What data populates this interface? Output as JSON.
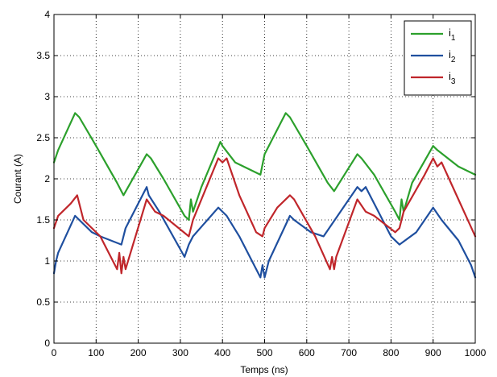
{
  "chart_data": {
    "type": "line",
    "title": "",
    "xlabel": "Temps (ns)",
    "ylabel": "Courant (A)",
    "xlim": [
      0,
      1000
    ],
    "ylim": [
      0,
      4
    ],
    "xticks": [
      "0",
      "100",
      "200",
      "300",
      "400",
      "500",
      "600",
      "700",
      "800",
      "900",
      "1000"
    ],
    "yticks": [
      "0",
      "0.5",
      "1",
      "1.5",
      "2",
      "2.5",
      "3",
      "3.5",
      "4"
    ],
    "grid": true,
    "legend_position": "top-right",
    "series": [
      {
        "name": "i1",
        "legend_base": "i",
        "legend_sub": "1",
        "color": "#2ca02c",
        "x": [
          0,
          10,
          50,
          60,
          100,
          150,
          165,
          220,
          230,
          260,
          310,
          320,
          325,
          330,
          350,
          395,
          400,
          430,
          490,
          500,
          550,
          560,
          600,
          650,
          665,
          720,
          730,
          760,
          810,
          820,
          825,
          830,
          850,
          900,
          910,
          960,
          1000
        ],
        "y": [
          2.2,
          2.35,
          2.8,
          2.75,
          2.4,
          1.95,
          1.8,
          2.3,
          2.25,
          2.0,
          1.55,
          1.5,
          1.75,
          1.6,
          1.9,
          2.45,
          2.4,
          2.2,
          2.05,
          2.3,
          2.8,
          2.75,
          2.4,
          1.95,
          1.85,
          2.3,
          2.25,
          2.05,
          1.6,
          1.5,
          1.75,
          1.6,
          1.95,
          2.4,
          2.35,
          2.15,
          2.05
        ]
      },
      {
        "name": "i2",
        "legend_base": "i",
        "legend_sub": "2",
        "color": "#1f4f9f",
        "x": [
          0,
          5,
          10,
          50,
          60,
          90,
          110,
          160,
          170,
          220,
          225,
          250,
          310,
          320,
          330,
          390,
          410,
          440,
          490,
          495,
          500,
          510,
          560,
          570,
          610,
          640,
          720,
          730,
          740,
          760,
          800,
          820,
          860,
          900,
          920,
          960,
          990,
          1000
        ],
        "y": [
          0.85,
          1.0,
          1.1,
          1.55,
          1.5,
          1.35,
          1.3,
          1.2,
          1.4,
          1.9,
          1.8,
          1.6,
          1.05,
          1.2,
          1.3,
          1.65,
          1.55,
          1.3,
          0.8,
          0.95,
          0.8,
          1.0,
          1.55,
          1.5,
          1.35,
          1.3,
          1.9,
          1.85,
          1.9,
          1.7,
          1.3,
          1.2,
          1.35,
          1.65,
          1.5,
          1.25,
          0.95,
          0.8
        ]
      },
      {
        "name": "i3",
        "legend_base": "i",
        "legend_sub": "3",
        "color": "#c0262b",
        "x": [
          0,
          10,
          40,
          55,
          70,
          110,
          150,
          155,
          160,
          165,
          170,
          220,
          240,
          260,
          320,
          330,
          390,
          400,
          410,
          440,
          480,
          495,
          500,
          530,
          560,
          570,
          620,
          655,
          660,
          665,
          670,
          720,
          740,
          760,
          810,
          820,
          830,
          880,
          900,
          910,
          920,
          960,
          1000
        ],
        "y": [
          1.4,
          1.55,
          1.7,
          1.8,
          1.5,
          1.3,
          0.9,
          1.1,
          0.85,
          1.05,
          0.9,
          1.75,
          1.6,
          1.55,
          1.3,
          1.5,
          2.25,
          2.2,
          2.25,
          1.8,
          1.35,
          1.3,
          1.4,
          1.65,
          1.8,
          1.75,
          1.3,
          0.9,
          1.05,
          0.9,
          1.05,
          1.75,
          1.6,
          1.55,
          1.35,
          1.4,
          1.6,
          2.05,
          2.25,
          2.15,
          2.2,
          1.75,
          1.3
        ]
      }
    ]
  }
}
